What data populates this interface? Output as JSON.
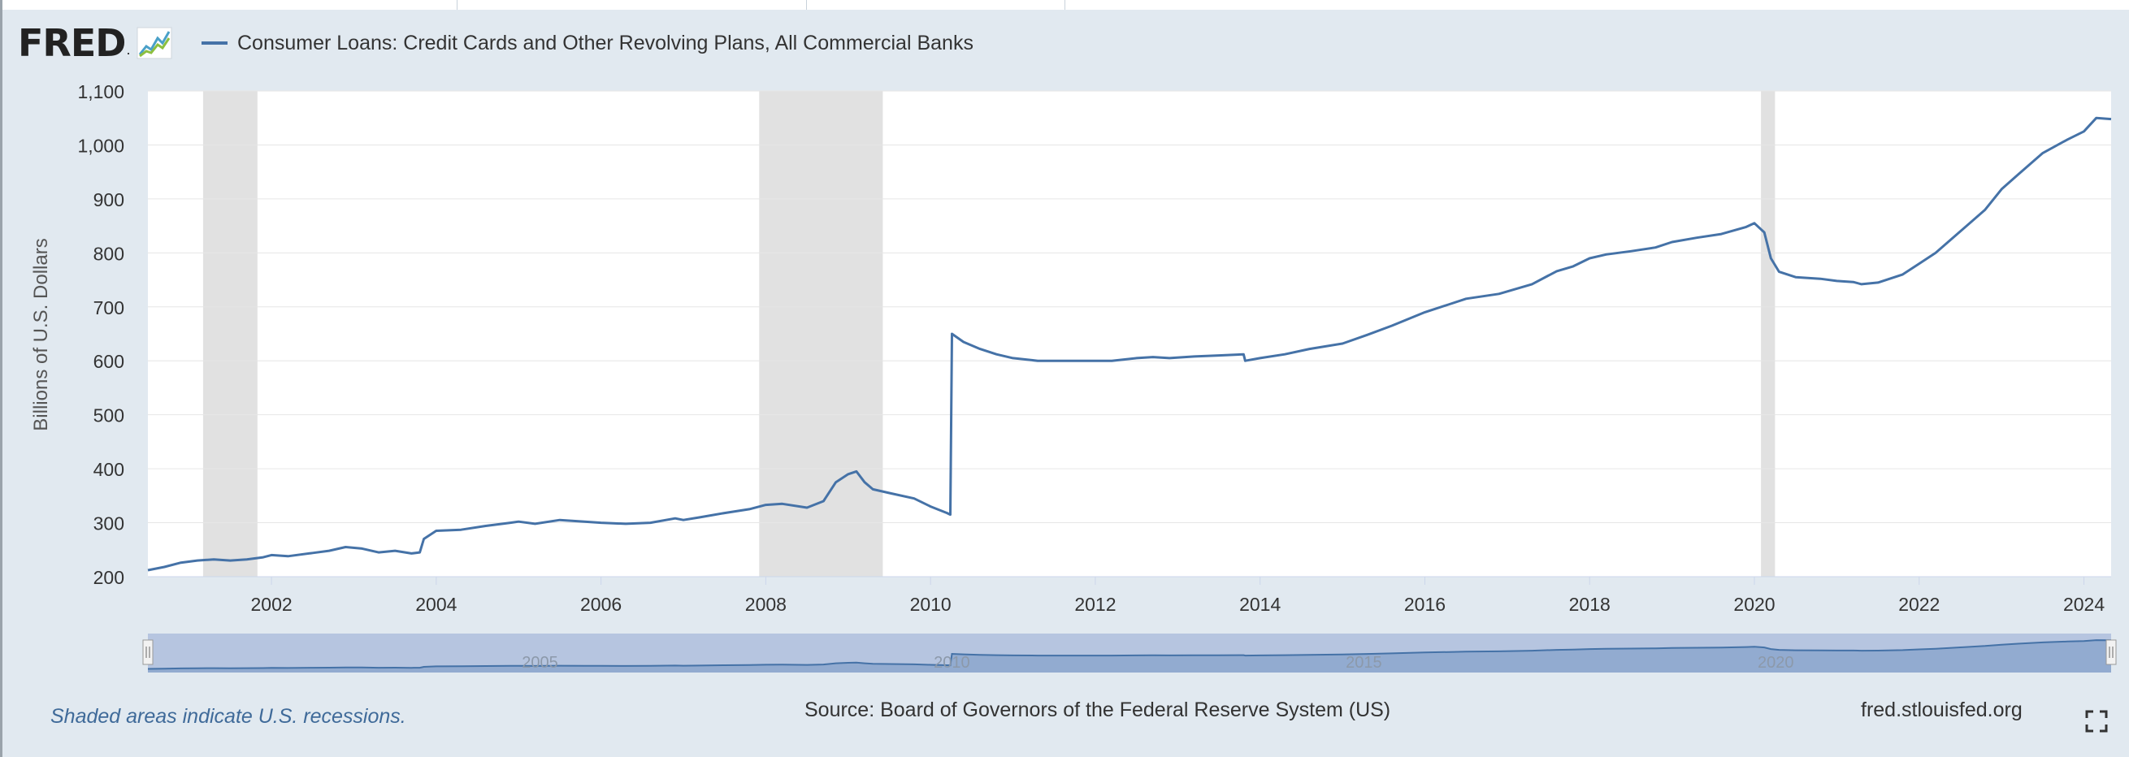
{
  "logo": {
    "text": "FRED",
    "dot": "."
  },
  "legend": {
    "series_name": "Consumer Loans: Credit Cards and Other Revolving Plans, All Commercial Banks"
  },
  "footer": {
    "recession_note": "Shaded areas indicate U.S. recessions.",
    "source": "Source: Board of Governors of the Federal Reserve System (US)",
    "url": "fred.stlouisfed.org"
  },
  "colors": {
    "series": "#4572a7",
    "recession": "#e1e1e1",
    "navigator_fill": "#b6c5e0"
  },
  "chart_data": {
    "type": "line",
    "ylabel": "Billions of U.S. Dollars",
    "ylim": [
      200,
      1100
    ],
    "xlim": [
      2000.5,
      2024.33
    ],
    "yticks": [
      200,
      300,
      400,
      500,
      600,
      700,
      800,
      900,
      1000,
      1100
    ],
    "xticks": [
      2002,
      2004,
      2006,
      2008,
      2010,
      2012,
      2014,
      2016,
      2018,
      2020,
      2022,
      2024
    ],
    "recessions": [
      [
        2001.17,
        2001.83
      ],
      [
        2007.92,
        2009.42
      ],
      [
        2020.08,
        2020.25
      ]
    ],
    "navigator_labels": [
      "2005",
      "2010",
      "2015",
      "2020"
    ],
    "grid": true,
    "series": [
      {
        "name": "Consumer Loans: Credit Cards and Other Revolving Plans, All Commercial Banks",
        "x": [
          2000.5,
          2000.7,
          2000.9,
          2001.1,
          2001.3,
          2001.5,
          2001.7,
          2001.9,
          2002.0,
          2002.2,
          2002.5,
          2002.7,
          2002.9,
          2003.1,
          2003.3,
          2003.5,
          2003.7,
          2003.8,
          2003.85,
          2004.0,
          2004.3,
          2004.6,
          2004.9,
          2005.0,
          2005.2,
          2005.5,
          2005.8,
          2006.0,
          2006.3,
          2006.6,
          2006.9,
          2007.0,
          2007.2,
          2007.5,
          2007.8,
          2008.0,
          2008.2,
          2008.5,
          2008.7,
          2008.85,
          2009.0,
          2009.1,
          2009.2,
          2009.3,
          2009.5,
          2009.8,
          2010.0,
          2010.2,
          2010.24,
          2010.26,
          2010.4,
          2010.6,
          2010.8,
          2011.0,
          2011.3,
          2011.6,
          2011.9,
          2012.2,
          2012.5,
          2012.7,
          2012.9,
          2013.2,
          2013.5,
          2013.8,
          2013.82,
          2014.0,
          2014.3,
          2014.6,
          2015.0,
          2015.3,
          2015.6,
          2016.0,
          2016.3,
          2016.5,
          2016.9,
          2017.3,
          2017.6,
          2017.8,
          2018.0,
          2018.2,
          2018.5,
          2018.8,
          2019.0,
          2019.3,
          2019.6,
          2019.9,
          2020.0,
          2020.12,
          2020.2,
          2020.3,
          2020.5,
          2020.8,
          2021.0,
          2021.2,
          2021.3,
          2021.5,
          2021.8,
          2022.0,
          2022.2,
          2022.5,
          2022.8,
          2023.0,
          2023.2,
          2023.5,
          2023.8,
          2024.0,
          2024.15,
          2024.33
        ],
        "y": [
          212,
          218,
          226,
          230,
          232,
          230,
          232,
          236,
          240,
          238,
          244,
          248,
          255,
          252,
          245,
          248,
          243,
          245,
          270,
          285,
          287,
          294,
          300,
          302,
          298,
          305,
          302,
          300,
          298,
          300,
          308,
          305,
          310,
          318,
          325,
          333,
          335,
          328,
          340,
          375,
          390,
          395,
          375,
          362,
          355,
          345,
          330,
          318,
          315,
          650,
          635,
          622,
          612,
          605,
          600,
          600,
          600,
          600,
          605,
          607,
          605,
          608,
          610,
          612,
          600,
          605,
          612,
          622,
          632,
          648,
          665,
          690,
          705,
          715,
          724,
          742,
          766,
          775,
          790,
          797,
          803,
          810,
          820,
          828,
          835,
          848,
          855,
          838,
          790,
          765,
          755,
          752,
          748,
          746,
          742,
          745,
          760,
          780,
          800,
          840,
          880,
          918,
          945,
          985,
          1010,
          1025,
          1050,
          1048
        ]
      }
    ]
  }
}
